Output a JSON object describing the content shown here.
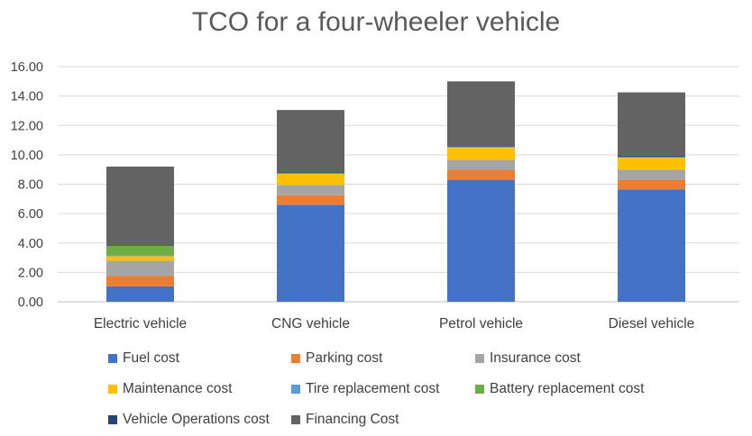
{
  "chart_data": {
    "type": "bar",
    "stacked": true,
    "title": "TCO for a four-wheeler vehicle",
    "xlabel": "",
    "ylabel": "",
    "ylim": [
      0,
      16
    ],
    "yticks": [
      "0.00",
      "2.00",
      "4.00",
      "6.00",
      "8.00",
      "10.00",
      "12.00",
      "14.00",
      "16.00"
    ],
    "grid": true,
    "legend_position": "bottom",
    "categories": [
      "Electric vehicle",
      "CNG vehicle",
      "Petrol vehicle",
      "Diesel vehicle"
    ],
    "series": [
      {
        "name": "Fuel cost",
        "color": "#4472C4",
        "values": [
          1.05,
          6.6,
          8.3,
          7.65
        ]
      },
      {
        "name": "Parking cost",
        "color": "#ED7D31",
        "values": [
          0.7,
          0.65,
          0.65,
          0.65
        ]
      },
      {
        "name": "Insurance cost",
        "color": "#A5A5A5",
        "values": [
          1.05,
          0.7,
          0.7,
          0.7
        ]
      },
      {
        "name": "Maintenance cost",
        "color": "#FFC000",
        "values": [
          0.3,
          0.75,
          0.85,
          0.8
        ]
      },
      {
        "name": "Tire replacement cost",
        "color": "#5B9BD5",
        "values": [
          0.05,
          0.05,
          0.05,
          0.05
        ]
      },
      {
        "name": "Battery replacement cost",
        "color": "#70AD47",
        "values": [
          0.65,
          0.0,
          0.0,
          0.0
        ]
      },
      {
        "name": "Vehicle Operations cost",
        "color": "#264478",
        "values": [
          0.05,
          0.05,
          0.05,
          0.05
        ]
      },
      {
        "name": "Financing Cost",
        "color": "#636363",
        "values": [
          5.35,
          4.25,
          4.4,
          4.35
        ]
      }
    ]
  }
}
